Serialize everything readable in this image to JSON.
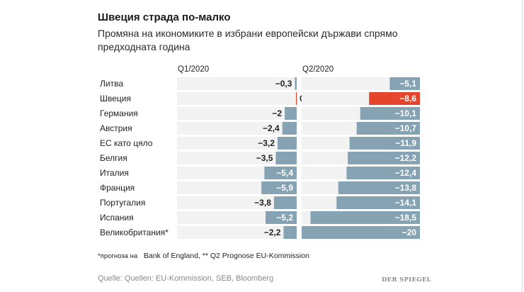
{
  "header": {
    "title": "Швеция страда по-малко",
    "subtitle": "Промяна на икономиките в избрани европейски държави спрямо предходната година"
  },
  "colors": {
    "bar": "#85a3b3",
    "highlight": "#e5452c",
    "track": "#f2f2f2",
    "label_dark": "#222222",
    "label_light": "#ffffff"
  },
  "chart_data": {
    "type": "bar",
    "orientation": "horizontal",
    "title": "Швеция страда по-малко",
    "subtitle": "Промяна на икономиките в избрани европейски държави спрямо предходната година",
    "categories": [
      "Литва",
      "Швеция",
      "Германия",
      "Австрия",
      "ЕС като цяло",
      "Белгия",
      "Италия",
      "Франция",
      "Португалия",
      "Испания",
      "Великобритания*"
    ],
    "highlight_category": "Швеция",
    "series": [
      {
        "name": "Q1/2020",
        "values": [
          -0.3,
          0.1,
          -2,
          -2.4,
          -3.2,
          -3.5,
          -5.4,
          -5.9,
          -3.8,
          -5.2,
          -2.2
        ],
        "labels": [
          "−0,3",
          "0,1",
          "−2",
          "−2,4",
          "−3,2",
          "−3,5",
          "−5,4",
          "−5,9",
          "−3,8",
          "−5,2",
          "−2,2"
        ]
      },
      {
        "name": "Q2/2020",
        "values": [
          -5.1,
          -8.6,
          -10.1,
          -10.7,
          -11.9,
          -12.2,
          -12.4,
          -13.8,
          -14.1,
          -18.5,
          -20
        ],
        "labels": [
          "−5,1",
          "−8,6",
          "−10,1",
          "−10,7",
          "−11,9",
          "−12,2",
          "−12,4",
          "−13,8",
          "−14,1",
          "−18,5",
          "−20"
        ]
      }
    ],
    "xlim": [
      -20,
      0
    ],
    "xlabel": "",
    "ylabel": "",
    "grid": false,
    "legend": "column headers"
  },
  "footnote": {
    "part1": "*прогноза на",
    "part2": "Bank of England, ** Q2 Prognose EU-Kommission"
  },
  "source": "Quelle: Quellen: EU-Kommission, SEB, Bloomberg",
  "logo": "DER SPIEGEL"
}
